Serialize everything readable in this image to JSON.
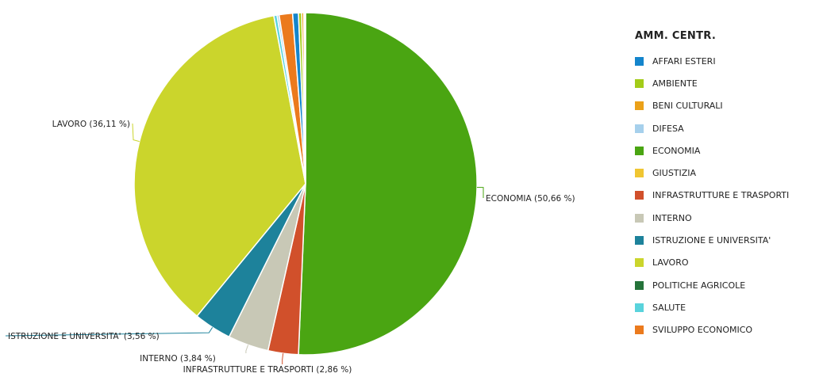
{
  "chart_data": {
    "type": "pie",
    "legend_title": "AMM. CENTR.",
    "legend_placement": "right",
    "slices": [
      {
        "label": "ECONOMIA",
        "value": 50.66,
        "color": "#4aa512",
        "callout": "ECONOMIA (50,66 %)"
      },
      {
        "label": "INFRASTRUTTURE E TRASPORTI",
        "value": 2.86,
        "color": "#d1502b",
        "callout": "INFRASTRUTTURE E TRASPORTI (2,86 %)"
      },
      {
        "label": "INTERNO",
        "value": 3.84,
        "color": "#c8c8b6",
        "callout": "INTERNO (3,84 %)"
      },
      {
        "label": "ISTRUZIONE E UNIVERSITA'",
        "value": 3.56,
        "color": "#1d829b",
        "callout": "ISTRUZIONE E UNIVERSITA' (3,56 %)"
      },
      {
        "label": "LAVORO",
        "value": 36.11,
        "color": "#cbd52c",
        "callout": "LAVORO (36,11 %)"
      },
      {
        "label": "SALUTE",
        "value": 0.3,
        "color": "#59d3dc",
        "callout": ""
      },
      {
        "label": "DIFESA",
        "value": 0.2,
        "color": "#a6d0ec",
        "callout": ""
      },
      {
        "label": "SVILUPPO ECONOMICO",
        "value": 1.26,
        "color": "#eb7a1d",
        "callout": ""
      },
      {
        "label": "AFFARI ESTERI",
        "value": 0.55,
        "color": "#1485cc",
        "callout": ""
      },
      {
        "label": "AMBIENTE",
        "value": 0.3,
        "color": "#a3cc19",
        "callout": ""
      },
      {
        "label": "BENI CULTURALI",
        "value": 0.2,
        "color": "#eba119",
        "callout": ""
      },
      {
        "label": "GIUSTIZIA",
        "value": 0.1,
        "color": "#f0c632",
        "callout": ""
      },
      {
        "label": "POLITICHE AGRICOLE",
        "value": 0.06,
        "color": "#25733a",
        "callout": ""
      }
    ]
  },
  "legend": {
    "title": "AMM. CENTR.",
    "items": [
      {
        "label": "AFFARI ESTERI",
        "color": "#1485cc"
      },
      {
        "label": "AMBIENTE",
        "color": "#a3cc19"
      },
      {
        "label": "BENI CULTURALI",
        "color": "#eba119"
      },
      {
        "label": "DIFESA",
        "color": "#a6d0ec"
      },
      {
        "label": "ECONOMIA",
        "color": "#4aa512"
      },
      {
        "label": "GIUSTIZIA",
        "color": "#f0c632"
      },
      {
        "label": "INFRASTRUTTURE E TRASPORTI",
        "color": "#d1502b"
      },
      {
        "label": "INTERNO",
        "color": "#c8c8b6"
      },
      {
        "label": "ISTRUZIONE E UNIVERSITA'",
        "color": "#1d829b"
      },
      {
        "label": "LAVORO",
        "color": "#cbd52c"
      },
      {
        "label": "POLITICHE AGRICOLE",
        "color": "#25733a"
      },
      {
        "label": "SALUTE",
        "color": "#59d3dc"
      },
      {
        "label": "SVILUPPO ECONOMICO",
        "color": "#eb7a1d"
      }
    ]
  }
}
